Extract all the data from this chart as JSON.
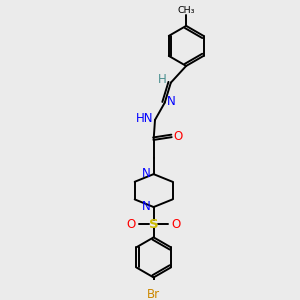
{
  "bg_color": "#ebebeb",
  "atom_colors": {
    "C": "#000000",
    "H": "#4a9090",
    "N": "#0000ff",
    "O": "#ff0000",
    "S": "#ccbb00",
    "Br": "#cc8800"
  },
  "bond_color": "#000000",
  "ring_r": 0.72,
  "lw": 1.4,
  "fontsize": 8.5
}
